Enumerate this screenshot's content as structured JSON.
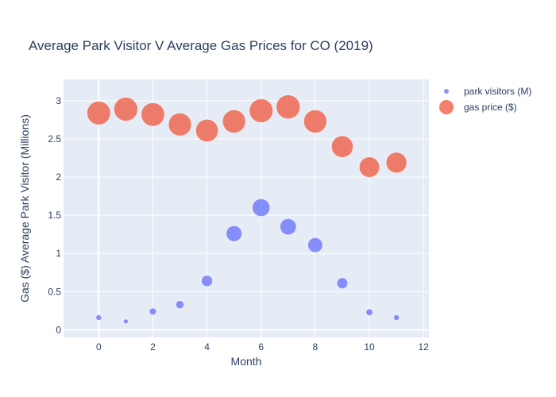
{
  "chart_data": {
    "type": "scatter",
    "title": "Average Park Visitor V Average Gas Prices for CO (2019)",
    "xlabel": "Month",
    "ylabel": "Gas ($) Average Park Visitor (Millions)",
    "xlim": [
      -1.3,
      12.2
    ],
    "ylim": [
      -0.1,
      3.28
    ],
    "x_ticks": [
      0,
      2,
      4,
      6,
      8,
      10,
      12
    ],
    "y_ticks": [
      0,
      0.5,
      1,
      1.5,
      2,
      2.5,
      3
    ],
    "y_tick_labels": [
      "0",
      "0.5",
      "1",
      "1.5",
      "2",
      "2.5",
      "3"
    ],
    "grid": true,
    "legend_position": "top-right",
    "marker_size_encodes_value": true,
    "series": [
      {
        "name": "park visitors (M)",
        "color": "#636efa",
        "x": [
          0,
          1,
          2,
          3,
          4,
          5,
          6,
          7,
          8,
          9,
          10,
          11
        ],
        "y": [
          0.16,
          0.11,
          0.24,
          0.33,
          0.64,
          1.26,
          1.6,
          1.35,
          1.11,
          0.61,
          0.23,
          0.16
        ]
      },
      {
        "name": "gas price ($)",
        "color": "#ef553b",
        "x": [
          0,
          1,
          2,
          3,
          4,
          5,
          6,
          7,
          8,
          9,
          10,
          11
        ],
        "y": [
          2.84,
          2.89,
          2.82,
          2.69,
          2.61,
          2.73,
          2.87,
          2.92,
          2.73,
          2.4,
          2.13,
          2.19
        ]
      }
    ]
  }
}
